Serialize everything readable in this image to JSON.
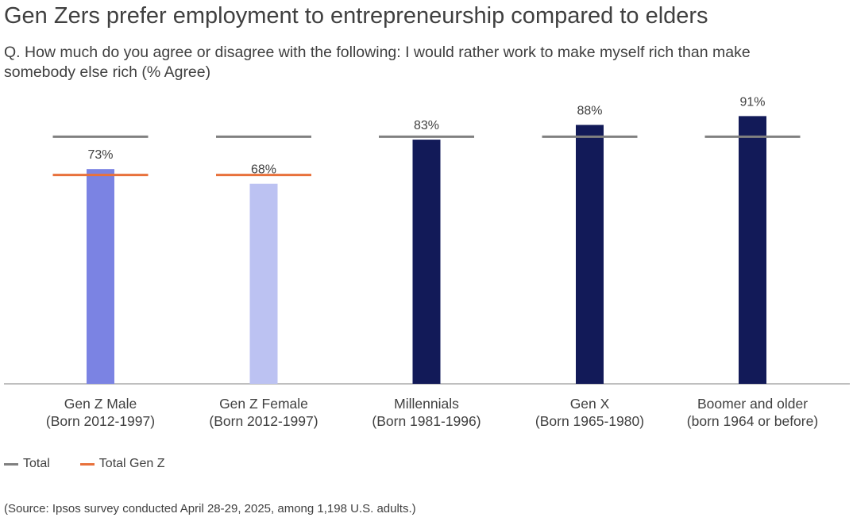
{
  "chart_data": {
    "type": "bar",
    "title": "Gen Zers prefer employment to entrepreneurship compared to elders",
    "subtitle": "Q. How much do you agree or disagree with the following: I would rather work to make myself rich than make somebody else rich (% Agree)",
    "categories": [
      [
        "Gen Z Male",
        "(Born 2012-1997)"
      ],
      [
        "Gen Z Female",
        "(Born 2012-1997)"
      ],
      [
        "Millennials",
        "(Born 1981-1996)"
      ],
      [
        "Gen X",
        "(Born 1965-1980)"
      ],
      [
        "Boomer and older",
        "(born 1964 or before)"
      ]
    ],
    "values": [
      73,
      68,
      83,
      88,
      91
    ],
    "data_labels": [
      "73%",
      "68%",
      "83%",
      "88%",
      "91%"
    ],
    "bar_colors": [
      "#7b83e3",
      "#bcc2f2",
      "#121a58",
      "#121a58",
      "#121a58"
    ],
    "reference_lines": [
      {
        "name": "Total",
        "value": 84,
        "color": "#808080",
        "applies_to": [
          0,
          1,
          2,
          3,
          4
        ]
      },
      {
        "name": "Total Gen Z",
        "value": 71,
        "color": "#e8713b",
        "applies_to": [
          0,
          1
        ]
      }
    ],
    "ylim": [
      0,
      100
    ],
    "xlabel": "",
    "ylabel": "",
    "grid": false,
    "legend": "bottom-left"
  },
  "legend": [
    {
      "label": "Total",
      "color": "#808080"
    },
    {
      "label": "Total Gen Z",
      "color": "#e8713b"
    }
  ],
  "source": "(Source: Ipsos survey conducted April 28-29, 2025, among 1,198 U.S. adults.)"
}
